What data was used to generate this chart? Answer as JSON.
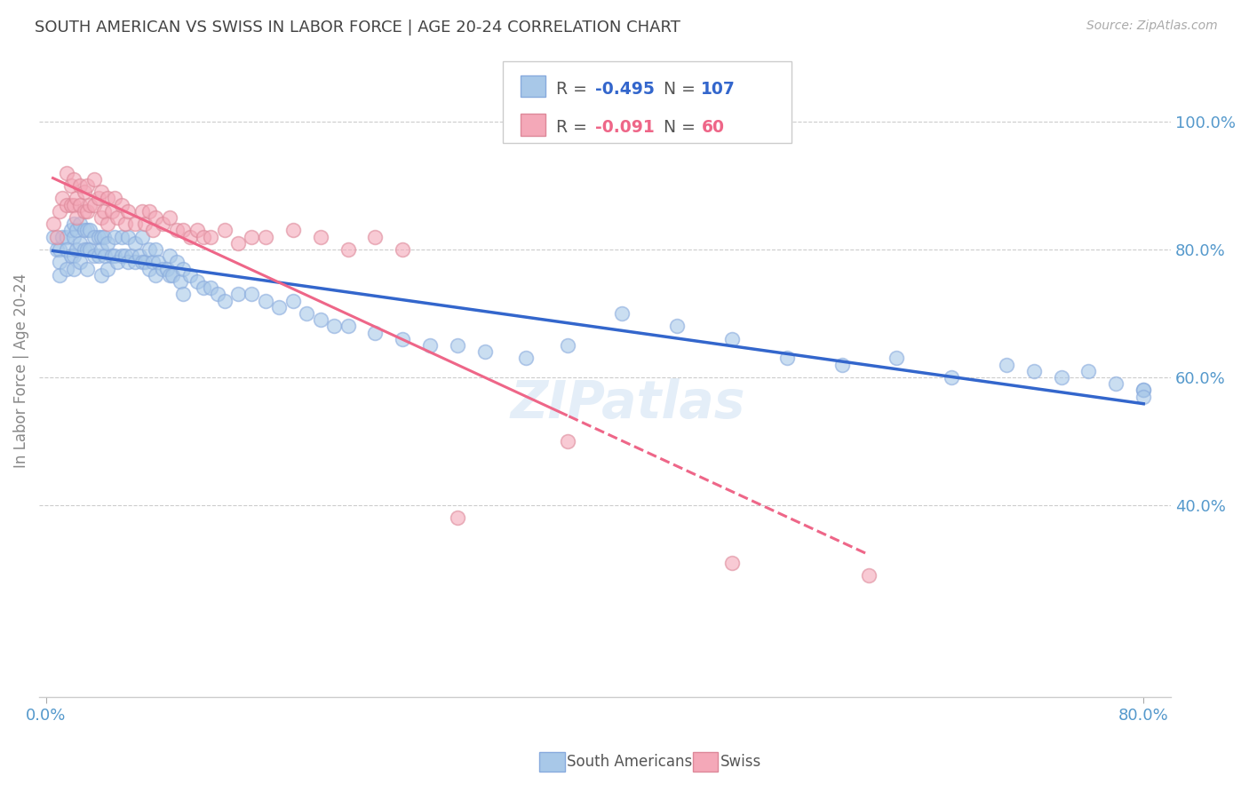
{
  "title": "SOUTH AMERICAN VS SWISS IN LABOR FORCE | AGE 20-24 CORRELATION CHART",
  "source": "Source: ZipAtlas.com",
  "ylabel": "In Labor Force | Age 20-24",
  "watermark": "ZIPatlas",
  "blue_R": -0.495,
  "blue_N": 107,
  "pink_R": -0.091,
  "pink_N": 60,
  "blue_color": "#a8c8e8",
  "pink_color": "#f4a8b8",
  "blue_line_color": "#3366cc",
  "pink_line_color": "#ee6688",
  "xlim": [
    -0.005,
    0.82
  ],
  "ylim": [
    0.1,
    1.12
  ],
  "xtick_positions": [
    0.0,
    0.8
  ],
  "xtick_labels": [
    "0.0%",
    "80.0%"
  ],
  "yticks_right": [
    0.4,
    0.6,
    0.8,
    1.0
  ],
  "legend_blue_label": "South Americans",
  "legend_pink_label": "Swiss",
  "blue_scatter_x": [
    0.005,
    0.008,
    0.01,
    0.01,
    0.01,
    0.012,
    0.015,
    0.015,
    0.015,
    0.018,
    0.018,
    0.02,
    0.02,
    0.02,
    0.02,
    0.022,
    0.022,
    0.025,
    0.025,
    0.025,
    0.028,
    0.028,
    0.03,
    0.03,
    0.03,
    0.032,
    0.032,
    0.035,
    0.035,
    0.038,
    0.038,
    0.04,
    0.04,
    0.04,
    0.042,
    0.043,
    0.045,
    0.045,
    0.048,
    0.05,
    0.05,
    0.052,
    0.055,
    0.055,
    0.058,
    0.06,
    0.06,
    0.062,
    0.065,
    0.065,
    0.068,
    0.07,
    0.07,
    0.072,
    0.075,
    0.075,
    0.078,
    0.08,
    0.08,
    0.082,
    0.085,
    0.088,
    0.09,
    0.09,
    0.092,
    0.095,
    0.098,
    0.1,
    0.1,
    0.105,
    0.11,
    0.115,
    0.12,
    0.125,
    0.13,
    0.14,
    0.15,
    0.16,
    0.17,
    0.18,
    0.19,
    0.2,
    0.21,
    0.22,
    0.24,
    0.26,
    0.28,
    0.3,
    0.32,
    0.35,
    0.38,
    0.42,
    0.46,
    0.5,
    0.54,
    0.58,
    0.62,
    0.66,
    0.7,
    0.72,
    0.74,
    0.76,
    0.78,
    0.8,
    0.8,
    0.8
  ],
  "blue_scatter_y": [
    0.82,
    0.8,
    0.8,
    0.78,
    0.76,
    0.82,
    0.82,
    0.8,
    0.77,
    0.83,
    0.79,
    0.84,
    0.82,
    0.79,
    0.77,
    0.83,
    0.8,
    0.84,
    0.81,
    0.78,
    0.83,
    0.8,
    0.83,
    0.8,
    0.77,
    0.83,
    0.8,
    0.82,
    0.79,
    0.82,
    0.79,
    0.82,
    0.8,
    0.76,
    0.82,
    0.79,
    0.81,
    0.77,
    0.79,
    0.82,
    0.79,
    0.78,
    0.82,
    0.79,
    0.79,
    0.82,
    0.78,
    0.79,
    0.81,
    0.78,
    0.79,
    0.82,
    0.78,
    0.78,
    0.8,
    0.77,
    0.78,
    0.8,
    0.76,
    0.78,
    0.77,
    0.77,
    0.79,
    0.76,
    0.76,
    0.78,
    0.75,
    0.77,
    0.73,
    0.76,
    0.75,
    0.74,
    0.74,
    0.73,
    0.72,
    0.73,
    0.73,
    0.72,
    0.71,
    0.72,
    0.7,
    0.69,
    0.68,
    0.68,
    0.67,
    0.66,
    0.65,
    0.65,
    0.64,
    0.63,
    0.65,
    0.7,
    0.68,
    0.66,
    0.63,
    0.62,
    0.63,
    0.6,
    0.62,
    0.61,
    0.6,
    0.61,
    0.59,
    0.58,
    0.58,
    0.57
  ],
  "pink_scatter_x": [
    0.005,
    0.008,
    0.01,
    0.012,
    0.015,
    0.015,
    0.018,
    0.018,
    0.02,
    0.02,
    0.022,
    0.022,
    0.025,
    0.025,
    0.028,
    0.028,
    0.03,
    0.03,
    0.032,
    0.035,
    0.035,
    0.038,
    0.04,
    0.04,
    0.042,
    0.045,
    0.045,
    0.048,
    0.05,
    0.052,
    0.055,
    0.058,
    0.06,
    0.065,
    0.07,
    0.072,
    0.075,
    0.078,
    0.08,
    0.085,
    0.09,
    0.095,
    0.1,
    0.105,
    0.11,
    0.115,
    0.12,
    0.13,
    0.14,
    0.15,
    0.16,
    0.18,
    0.2,
    0.22,
    0.24,
    0.26,
    0.3,
    0.38,
    0.5,
    0.6
  ],
  "pink_scatter_y": [
    0.84,
    0.82,
    0.86,
    0.88,
    0.92,
    0.87,
    0.9,
    0.87,
    0.91,
    0.87,
    0.88,
    0.85,
    0.9,
    0.87,
    0.89,
    0.86,
    0.9,
    0.86,
    0.87,
    0.91,
    0.87,
    0.88,
    0.89,
    0.85,
    0.86,
    0.88,
    0.84,
    0.86,
    0.88,
    0.85,
    0.87,
    0.84,
    0.86,
    0.84,
    0.86,
    0.84,
    0.86,
    0.83,
    0.85,
    0.84,
    0.85,
    0.83,
    0.83,
    0.82,
    0.83,
    0.82,
    0.82,
    0.83,
    0.81,
    0.82,
    0.82,
    0.83,
    0.82,
    0.8,
    0.82,
    0.8,
    0.38,
    0.5,
    0.31,
    0.29
  ]
}
